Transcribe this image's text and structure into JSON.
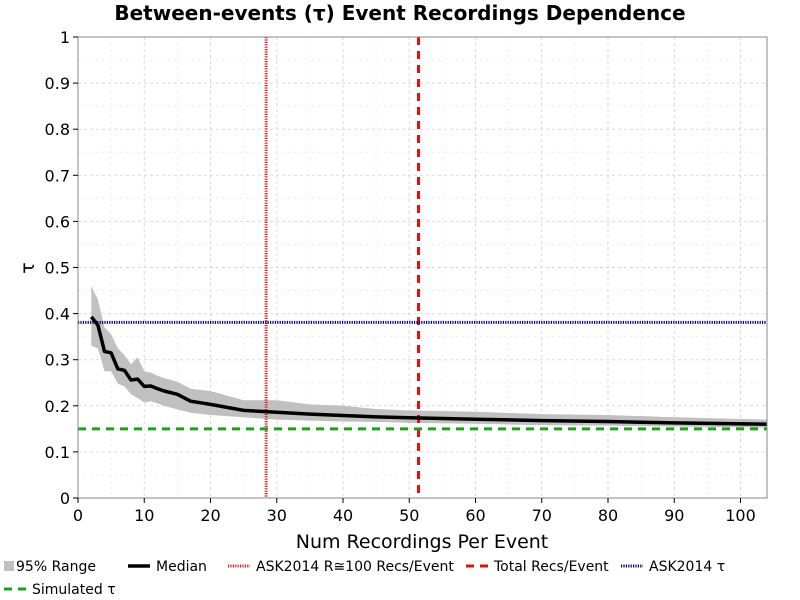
{
  "chart_data": {
    "type": "line",
    "title": "Between-events (τ) Event Recordings Dependence",
    "xlabel": "Num Recordings Per Event",
    "ylabel": "τ",
    "xlim": [
      0,
      104
    ],
    "ylim": [
      0,
      1
    ],
    "x_ticks": [
      0,
      10,
      20,
      30,
      40,
      50,
      60,
      70,
      80,
      90,
      100
    ],
    "y_ticks": [
      0,
      0.1,
      0.2,
      0.3,
      0.4,
      0.5,
      0.6,
      0.7,
      0.8,
      0.9,
      1
    ],
    "y_tick_labels": [
      "0",
      "0.1",
      "0.2",
      "0.3",
      "0.4",
      "0.5",
      "0.6",
      "0.7",
      "0.8",
      "0.9",
      "1"
    ],
    "grid": true,
    "legend_position": "bottom",
    "series": [
      {
        "name": "95% Range",
        "kind": "band",
        "color": "#c0c0c0",
        "x": [
          2,
          3,
          4,
          5,
          6,
          7,
          8,
          9,
          10,
          11,
          12,
          13,
          15,
          17,
          20,
          25,
          30,
          35,
          40,
          45,
          50,
          60,
          70,
          80,
          90,
          104
        ],
        "lower": [
          0.33,
          0.325,
          0.275,
          0.275,
          0.248,
          0.242,
          0.225,
          0.217,
          0.207,
          0.21,
          0.205,
          0.2,
          0.192,
          0.185,
          0.18,
          0.175,
          0.17,
          0.168,
          0.166,
          0.165,
          0.163,
          0.161,
          0.158,
          0.157,
          0.155,
          0.153
        ],
        "upper": [
          0.46,
          0.43,
          0.37,
          0.355,
          0.325,
          0.31,
          0.29,
          0.305,
          0.275,
          0.272,
          0.265,
          0.26,
          0.252,
          0.237,
          0.232,
          0.212,
          0.212,
          0.203,
          0.2,
          0.193,
          0.19,
          0.187,
          0.182,
          0.18,
          0.175,
          0.17
        ]
      },
      {
        "name": "Median",
        "kind": "line",
        "color": "#000000",
        "x": [
          2,
          3,
          4,
          5,
          6,
          7,
          8,
          9,
          10,
          11,
          12,
          13,
          15,
          17,
          20,
          25,
          30,
          35,
          40,
          45,
          50,
          60,
          70,
          80,
          90,
          104
        ],
        "values": [
          0.393,
          0.375,
          0.318,
          0.315,
          0.28,
          0.277,
          0.256,
          0.258,
          0.242,
          0.243,
          0.237,
          0.232,
          0.225,
          0.21,
          0.203,
          0.19,
          0.186,
          0.182,
          0.179,
          0.176,
          0.174,
          0.171,
          0.168,
          0.166,
          0.163,
          0.16
        ]
      },
      {
        "name": "ASK2014 R≅100 Recs/Event",
        "kind": "vline",
        "x": 28.4,
        "color": "#d62728",
        "dash": "dotted"
      },
      {
        "name": "Total Recs/Event",
        "kind": "vline",
        "x": 51.4,
        "color": "#e01010",
        "dash": "dashed"
      },
      {
        "name": "ASK2014 τ",
        "kind": "hline",
        "y": 0.381,
        "color": "#00007a",
        "dash": "dotted"
      },
      {
        "name": "Simulated τ",
        "kind": "hline",
        "y": 0.15,
        "color": "#1ea01e",
        "dash": "dashed"
      }
    ]
  }
}
